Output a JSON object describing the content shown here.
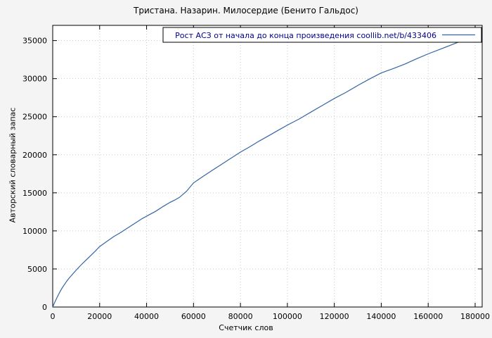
{
  "chart_data": {
    "type": "line",
    "title": "Тристана. Назарин. Милосердие (Бенито Гальдос)",
    "xlabel": "Счетчик слов",
    "ylabel": "Авторский словарный запас",
    "xlim": [
      0,
      183000
    ],
    "ylim": [
      0,
      37000
    ],
    "xticks": [
      0,
      20000,
      40000,
      60000,
      80000,
      100000,
      120000,
      140000,
      160000,
      180000
    ],
    "yticks": [
      0,
      5000,
      10000,
      15000,
      20000,
      25000,
      30000,
      35000
    ],
    "grid": true,
    "legend_position": "top-inside-box",
    "colors": {
      "line": "#3465a4",
      "legend_text": "#00008b",
      "grid": "#c8c8c8",
      "axis": "#000000",
      "plot_background": "#ffffff"
    },
    "series": [
      {
        "name": "Рост АСЗ от начала до конца произведения  coollib.net/b/433406",
        "x": [
          0,
          1000,
          2000,
          3000,
          4000,
          5000,
          6000,
          7000,
          8000,
          9000,
          10000,
          12000,
          14000,
          16000,
          18000,
          20000,
          23000,
          26000,
          29000,
          32000,
          35000,
          38000,
          41000,
          44000,
          47000,
          50000,
          52000,
          54000,
          57000,
          60000,
          64000,
          68000,
          72000,
          76000,
          80000,
          84000,
          88000,
          92000,
          96000,
          100000,
          105000,
          110000,
          115000,
          120000,
          125000,
          130000,
          135000,
          140000,
          145000,
          150000,
          155000,
          160000,
          165000,
          170000,
          175000,
          179000,
          182000
        ],
        "y": [
          0,
          700,
          1350,
          1950,
          2500,
          2950,
          3400,
          3800,
          4150,
          4500,
          4850,
          5500,
          6100,
          6700,
          7300,
          7950,
          8600,
          9250,
          9800,
          10400,
          11000,
          11600,
          12100,
          12600,
          13200,
          13750,
          14050,
          14400,
          15200,
          16300,
          17150,
          17950,
          18750,
          19550,
          20350,
          21050,
          21800,
          22500,
          23200,
          23900,
          24700,
          25600,
          26500,
          27400,
          28200,
          29100,
          29950,
          30750,
          31300,
          31900,
          32600,
          33250,
          33850,
          34450,
          35050,
          35500,
          35800
        ]
      }
    ]
  }
}
